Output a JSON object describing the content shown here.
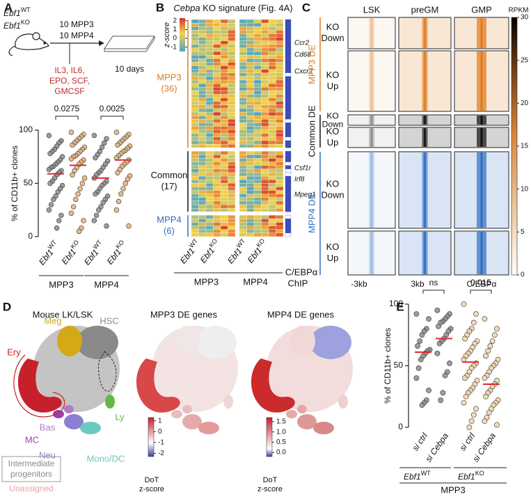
{
  "panel_a": {
    "label": "A",
    "mice": [
      {
        "gene": "Ebf1",
        "genotype": "WT"
      },
      {
        "gene": "Ebf1",
        "genotype": "KO"
      }
    ],
    "cells": [
      "10 MPP3",
      "10 MPP4"
    ],
    "cytokines": [
      "IL3, IL6,",
      "EPO, SCF,",
      "GMCSF"
    ],
    "duration": "10 days",
    "chart": {
      "type": "strip",
      "ylabel": "% of CD11b+ clones",
      "ylim": [
        0,
        100
      ],
      "yticks": [
        0,
        50,
        100
      ],
      "groups": [
        {
          "gene": "Ebf1",
          "genotype": "WT",
          "color": "#8c8c8c",
          "values": [
            95,
            90,
            88,
            85,
            82,
            80,
            78,
            75,
            72,
            70,
            68,
            66,
            65,
            63,
            62,
            60,
            58,
            55,
            52,
            50,
            48,
            45,
            42,
            38,
            35,
            30,
            25,
            20,
            15,
            8
          ],
          "mean": 59
        },
        {
          "gene": "Ebf1",
          "genotype": "KO",
          "color": "#e3b378",
          "values": [
            98,
            96,
            94,
            92,
            90,
            88,
            86,
            84,
            82,
            80,
            78,
            76,
            75,
            73,
            72,
            70,
            68,
            65,
            62,
            58,
            55,
            50,
            45,
            40,
            35,
            28,
            22,
            15,
            8,
            5
          ],
          "mean": 67
        },
        {
          "gene": "Ebf1",
          "genotype": "WT",
          "color": "#8c8c8c",
          "values": [
            95,
            92,
            88,
            84,
            80,
            77,
            74,
            71,
            68,
            65,
            62,
            60,
            58,
            55,
            52,
            50,
            48,
            45,
            42,
            40,
            38,
            35,
            32,
            28,
            25,
            20,
            15,
            10
          ],
          "mean": 55
        },
        {
          "gene": "Ebf1",
          "genotype": "KO",
          "color": "#e3b378",
          "values": [
            98,
            96,
            94,
            92,
            90,
            88,
            86,
            85,
            83,
            81,
            80,
            78,
            76,
            74,
            72,
            70,
            68,
            66,
            63,
            60,
            57,
            54,
            50,
            45,
            40,
            33,
            25,
            10
          ],
          "mean": 72
        }
      ],
      "mean_color": "#e0282d",
      "populations": [
        "MPP3",
        "MPP4"
      ],
      "comparisons": [
        "0.0275",
        "0.0025"
      ]
    }
  },
  "panel_b": {
    "label": "B",
    "title_italic": "Cebpa",
    "title": "KO signature (Fig. 4A)",
    "colorbar": {
      "title": "z-score",
      "lim": [
        -1.5,
        2.3
      ],
      "ticks": [
        2,
        1,
        0,
        -1
      ]
    },
    "row_groups": [
      {
        "name": "MPP3",
        "count": 36,
        "count_label": "(36)",
        "color": "#e07b1a"
      },
      {
        "name": "Common",
        "count": 17,
        "count_label": "(17)",
        "color": "#111111"
      },
      {
        "name": "MPP4",
        "count": 6,
        "count_label": "(6)",
        "color": "#2f6fc0"
      }
    ],
    "genes": [
      "Ccr2",
      "Cd68",
      "Cxcr2",
      "Csf1r",
      "Irf8",
      "Mpeg1"
    ],
    "columns": [
      {
        "gene": "Ebf1",
        "genotype": "WT"
      },
      {
        "gene": "Ebf1",
        "genotype": "KO"
      },
      {
        "gene": "Ebf1",
        "genotype": "WT"
      },
      {
        "gene": "Ebf1",
        "genotype": "KO"
      }
    ],
    "populations": [
      "MPP3",
      "MPP4"
    ],
    "chip": [
      "C/EBPα",
      "ChIP"
    ]
  },
  "panel_c": {
    "label": "C",
    "columns": [
      "LSK",
      "preGM",
      "GMP"
    ],
    "groups": [
      {
        "name": "MPP3 DE",
        "color": "#e07b1a",
        "rows": [
          [
            "KO",
            "Down"
          ],
          [
            "KO",
            "Up"
          ]
        ]
      },
      {
        "name": "Common DE",
        "color": "#111111",
        "rows": [
          [
            "KO",
            "Down"
          ],
          [
            "KO",
            "Up"
          ]
        ]
      },
      {
        "name": "MPP4 DE",
        "color": "#2f6fc0",
        "rows": [
          [
            "KO",
            "Down"
          ],
          [
            "KO",
            "Up"
          ]
        ]
      }
    ],
    "colorbar": {
      "title": "RPKM",
      "lim": [
        0,
        30
      ],
      "ticks": [
        0,
        5,
        10,
        15,
        20,
        25,
        30
      ]
    },
    "x_labels": [
      "-3kb",
      "3kb",
      "C/EBPα"
    ]
  },
  "panel_d": {
    "label": "D",
    "umaps": [
      {
        "title": "Mouse LK/LSK"
      },
      {
        "title": "MPP3 DE genes",
        "colorbar": {
          "title": [
            "DoT",
            "z-score"
          ],
          "lim": [
            -2.3,
            1.3
          ],
          "ticks": [
            1,
            0,
            -1,
            -2
          ]
        }
      },
      {
        "title": "MPP4 DE genes",
        "colorbar": {
          "title": [
            "DoT",
            "z-score"
          ],
          "lim": [
            -0.2,
            1.7
          ],
          "ticks": [
            1.5,
            {
              "value": 1.0,
              "label": "1.0"
            },
            0.5,
            {
              "value": 0.0,
              "label": "0.0"
            }
          ]
        }
      }
    ],
    "populations": [
      {
        "name": "Ery",
        "color": "#c8202a"
      },
      {
        "name": "Meg",
        "color": "#d4a817"
      },
      {
        "name": "HSC",
        "color": "#8a8a8a"
      },
      {
        "name": "MC",
        "color": "#9b3fb0"
      },
      {
        "name": "Bas",
        "color": "#b07cc6"
      },
      {
        "name": "Neu",
        "color": "#8a7fd0"
      },
      {
        "name": "Mono/DC",
        "color": "#6cc9bf"
      },
      {
        "name": "Ly",
        "color": "#62b840"
      }
    ],
    "intermediate": [
      "Intermediate",
      "progenitors"
    ],
    "unassigned": "Unassigned"
  },
  "panel_e": {
    "label": "E",
    "chart": {
      "type": "strip",
      "ylabel": "% of CD11b+ clones",
      "ylim": [
        0,
        100
      ],
      "yticks": [
        0,
        50,
        100
      ],
      "groups": [
        {
          "label": "si ctrl",
          "color": "#8c8c8c",
          "values": [
            92,
            88,
            80,
            78,
            75,
            70,
            66,
            63,
            62,
            60,
            58,
            55,
            48,
            40,
            30,
            22,
            20,
            18
          ],
          "mean": 61
        },
        {
          "label": "si Cebpa",
          "color": "#8c8c8c",
          "values": [
            95,
            92,
            90,
            88,
            86,
            85,
            82,
            80,
            78,
            75,
            72,
            70,
            68,
            60,
            52,
            45,
            42,
            28,
            22
          ],
          "mean": 72
        },
        {
          "label": "si ctrl",
          "color": "#f1d3a8",
          "values": [
            100,
            92,
            85,
            80,
            78,
            75,
            72,
            70,
            68,
            65,
            62,
            60,
            58,
            55,
            52,
            50,
            48,
            45,
            42,
            40,
            38,
            35,
            32,
            30,
            28,
            25,
            20,
            15,
            10,
            5,
            0
          ],
          "mean": 53
        },
        {
          "label": "si Cebpa",
          "color": "#f1d3a8",
          "values": [
            88,
            80,
            75,
            70,
            66,
            62,
            58,
            55,
            52,
            50,
            48,
            45,
            42,
            40,
            38,
            35,
            33,
            30,
            28,
            25,
            22,
            20,
            18,
            15,
            12,
            8,
            5,
            2
          ],
          "mean": 35
        }
      ],
      "mean_color": "#e0282d",
      "genotypes": [
        {
          "gene": "Ebf1",
          "genotype": "WT"
        },
        {
          "gene": "Ebf1",
          "genotype": "KO"
        }
      ],
      "population": "MPP3",
      "comparisons": [
        "ns",
        "0.015"
      ]
    }
  }
}
